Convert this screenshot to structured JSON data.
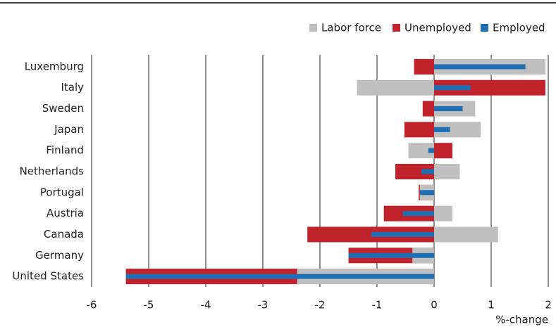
{
  "chart_data": {
    "type": "bar",
    "orientation": "horizontal",
    "categories": [
      "Luxemburg",
      "Italy",
      "Sweden",
      "Japan",
      "Finland",
      "Netherlands",
      "Portugal",
      "Austria",
      "Canada",
      "Germany",
      "United States"
    ],
    "series": [
      {
        "name": "Labor force",
        "color": "#bfbfbf",
        "values": [
          1.95,
          -1.35,
          0.72,
          0.82,
          -0.45,
          0.45,
          -0.25,
          0.32,
          1.12,
          -0.38,
          -2.4
        ]
      },
      {
        "name": "Unemployed",
        "color": "#c0232b",
        "values": [
          -0.35,
          1.95,
          -0.2,
          -0.52,
          0.32,
          -0.68,
          -0.27,
          -0.88,
          -2.22,
          -1.5,
          -5.4
        ]
      },
      {
        "name": "Employed",
        "color": "#1f6fb5",
        "values": [
          1.6,
          0.64,
          0.5,
          0.28,
          -0.1,
          -0.22,
          -0.25,
          -0.55,
          -1.1,
          -1.5,
          -5.4
        ]
      }
    ],
    "xlim": [
      -6,
      2
    ],
    "xticks": [
      -6,
      -5,
      -4,
      -3,
      -2,
      -1,
      0,
      1,
      2
    ],
    "xlabel": "%-change",
    "grid": true,
    "legend": "top-right"
  }
}
